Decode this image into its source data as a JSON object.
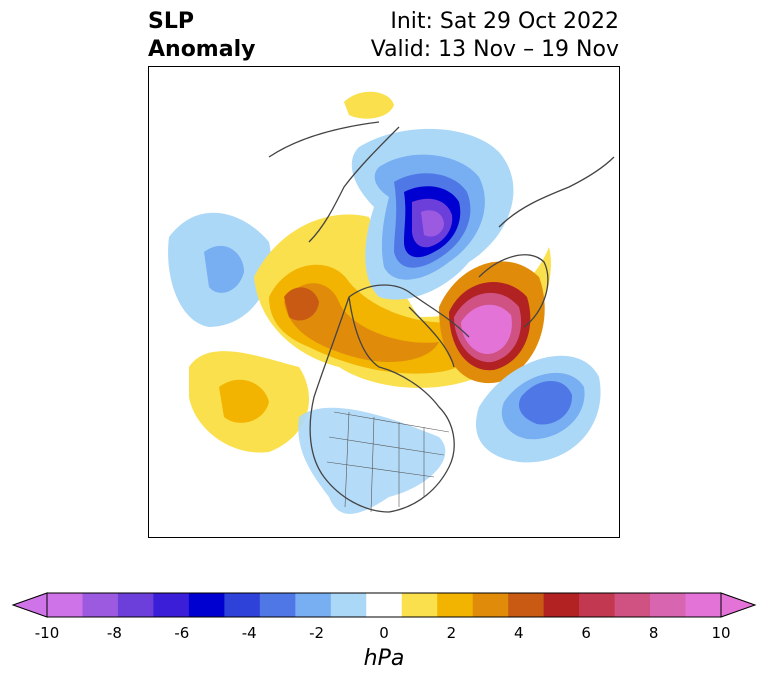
{
  "header": {
    "title_line1": "SLP",
    "title_line2": "Anomaly",
    "init_text": "Init: Sat 29 Oct 2022",
    "valid_text": "Valid: 13 Nov – 19 Nov"
  },
  "colorbar": {
    "unit": "hPa",
    "tick_labels": [
      "-10",
      "-8",
      "-6",
      "-4",
      "-2",
      "0",
      "2",
      "4",
      "6",
      "8",
      "10"
    ],
    "colors": [
      "#cf73e8",
      "#9c5ae0",
      "#6c3fda",
      "#3b1ed8",
      "#0000d0",
      "#2e41d8",
      "#4f78e6",
      "#78aef2",
      "#acd8f8",
      "#ffffff",
      "#fae04c",
      "#f2b400",
      "#e08c0a",
      "#c85a14",
      "#b22222",
      "#c23850",
      "#cf5282",
      "#d865b0",
      "#e473d8"
    ],
    "extend": "both"
  },
  "map": {
    "region": "Northern Hemisphere / North America",
    "features": [
      "coastlines",
      "country-borders",
      "us-state-borders",
      "canada-province-borders"
    ]
  }
}
